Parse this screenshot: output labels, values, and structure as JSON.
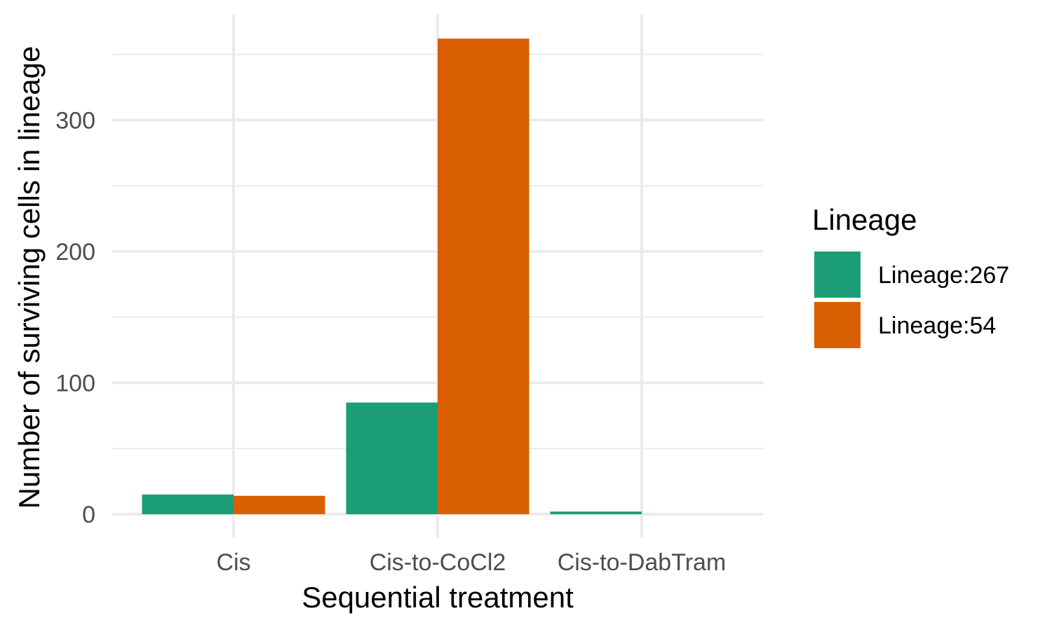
{
  "chart_data": {
    "type": "bar",
    "title": "",
    "xlabel": "Sequential treatment",
    "ylabel": "Number of surviving cells in lineage",
    "categories": [
      "Cis",
      "Cis-to-CoCl2",
      "Cis-to-DabTram"
    ],
    "series": [
      {
        "name": "Lineage:267",
        "color": "#1b9e77",
        "values": [
          15,
          85,
          2
        ]
      },
      {
        "name": "Lineage:54",
        "color": "#d95f02",
        "values": [
          14,
          362,
          0
        ]
      }
    ],
    "ylim": [
      0,
      380
    ],
    "yticks": [
      0,
      100,
      200,
      300
    ],
    "grid": true,
    "legend": {
      "title": "Lineage",
      "placement": "right"
    }
  }
}
